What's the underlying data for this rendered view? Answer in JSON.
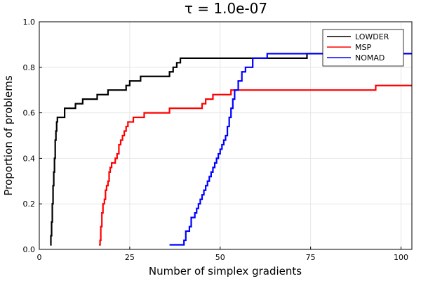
{
  "chart_data": {
    "type": "line",
    "step": true,
    "title": "τ = 1.0e-07",
    "xlabel": "Number of simplex gradients",
    "ylabel": "Proportion of problems",
    "xlim": [
      0,
      103
    ],
    "ylim": [
      0,
      1
    ],
    "xticks": [
      0,
      25,
      50,
      75,
      100
    ],
    "xtick_labels": [
      "0",
      "25",
      "50",
      "75",
      "100"
    ],
    "yticks": [
      0,
      0.2,
      0.4,
      0.6,
      0.8,
      1.0
    ],
    "ytick_labels": [
      "0.0",
      "0.2",
      "0.4",
      "0.6",
      "0.8",
      "1.0"
    ],
    "grid": true,
    "legend": "top-right",
    "series": [
      {
        "name": "LOWDER",
        "color": "#000000",
        "x": [
          3,
          3.2,
          3.4,
          3.6,
          3.8,
          4.0,
          4.2,
          4.4,
          4.6,
          4.8,
          5.0,
          5.4,
          7,
          8,
          10,
          12,
          14,
          16,
          19,
          24,
          25,
          28,
          36,
          37,
          38,
          39,
          40,
          74,
          103
        ],
        "y": [
          0.02,
          0.06,
          0.12,
          0.2,
          0.28,
          0.34,
          0.4,
          0.48,
          0.52,
          0.56,
          0.58,
          0.58,
          0.62,
          0.62,
          0.64,
          0.66,
          0.66,
          0.68,
          0.7,
          0.72,
          0.74,
          0.76,
          0.78,
          0.8,
          0.82,
          0.84,
          0.84,
          0.86,
          0.86
        ]
      },
      {
        "name": "MSP",
        "color": "#ff0000",
        "x": [
          16.5,
          16.8,
          17.0,
          17.3,
          17.6,
          18.0,
          18.3,
          18.6,
          19.0,
          19.3,
          19.6,
          20.0,
          21,
          21.5,
          22,
          22.5,
          23,
          23.5,
          24,
          24.5,
          26,
          29,
          36,
          45,
          46,
          48,
          53,
          93,
          103
        ],
        "y": [
          0.02,
          0.04,
          0.1,
          0.16,
          0.2,
          0.22,
          0.26,
          0.28,
          0.3,
          0.34,
          0.36,
          0.38,
          0.4,
          0.42,
          0.46,
          0.48,
          0.5,
          0.52,
          0.54,
          0.56,
          0.58,
          0.6,
          0.62,
          0.64,
          0.66,
          0.68,
          0.7,
          0.72,
          0.72
        ]
      },
      {
        "name": "NOMAD",
        "color": "#0000ff",
        "x": [
          36,
          40,
          40.5,
          41.5,
          42,
          43,
          43.5,
          44,
          44.5,
          45,
          45.5,
          46,
          46.5,
          47,
          47.5,
          48,
          48.5,
          49,
          49.5,
          50,
          50.5,
          51,
          51.5,
          52,
          52.5,
          53,
          53.5,
          54,
          55,
          56,
          57,
          59,
          63,
          103
        ],
        "y": [
          0.02,
          0.04,
          0.08,
          0.1,
          0.14,
          0.16,
          0.18,
          0.2,
          0.22,
          0.24,
          0.26,
          0.28,
          0.3,
          0.32,
          0.34,
          0.36,
          0.38,
          0.4,
          0.42,
          0.44,
          0.46,
          0.48,
          0.5,
          0.54,
          0.58,
          0.62,
          0.66,
          0.7,
          0.74,
          0.78,
          0.8,
          0.84,
          0.86,
          0.86
        ]
      }
    ]
  }
}
